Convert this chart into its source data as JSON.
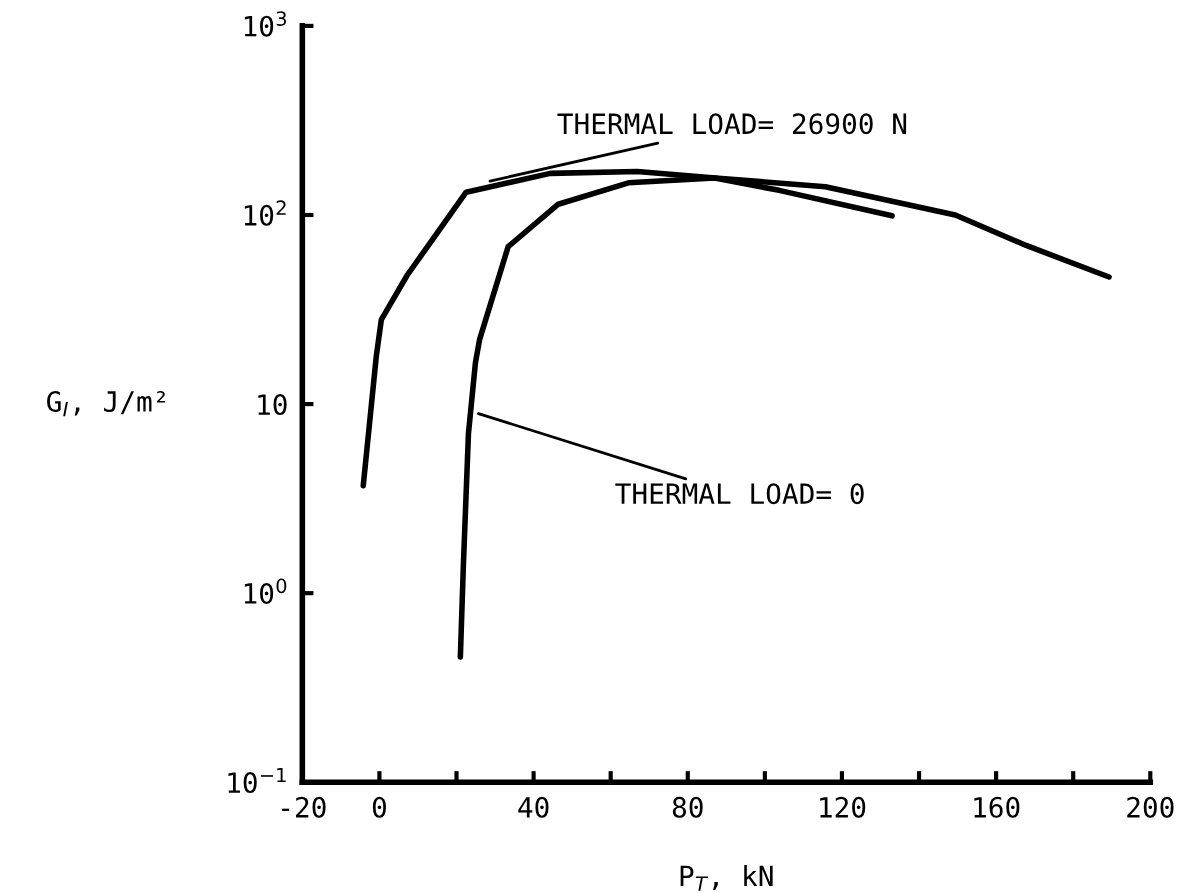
{
  "chart_data": {
    "type": "line",
    "xlabel": "P$_{T}$, kN",
    "ylabel": "G$_{I}$, J/m²",
    "log": "y",
    "grid": false,
    "legend": false,
    "marker": "none",
    "line_style": "solid",
    "xlim": [
      -20,
      200
    ],
    "xticks": [
      -20,
      0,
      {
        "value": 20,
        "label": null
      },
      40,
      {
        "value": 60,
        "label": null
      },
      80,
      {
        "value": 100,
        "label": null
      },
      120,
      {
        "value": 140,
        "label": null
      },
      160,
      {
        "value": 180,
        "label": null
      },
      200
    ],
    "ylim": [
      0.1,
      1000
    ],
    "yticks": [
      {
        "value": 0.1,
        "label": "10$^{−1}$"
      },
      {
        "value": 1,
        "label": "10$^{0}$"
      },
      {
        "value": 10,
        "label": "10"
      },
      {
        "value": 100,
        "label": "10$^{2}$"
      },
      {
        "value": 1000,
        "label": "10$^{3}$"
      }
    ],
    "series": [
      {
        "color": "#000000",
        "x": [
          -4.2,
          -0.8,
          0.5,
          7.2,
          22.5,
          44.3,
          66.9,
          87.1,
          115.7,
          149.4,
          167.8,
          189.3
        ],
        "values": [
          3.7,
          18,
          28,
          48,
          132,
          166,
          170,
          157,
          141,
          100,
          69,
          47
        ]
      },
      {
        "color": "#000000",
        "x": [
          21,
          21.8,
          23.1,
          24.9,
          26,
          33.4,
          46.4,
          64.6,
          87,
          103.7,
          133
        ],
        "values": [
          0.46,
          1.44,
          7.0,
          16.5,
          22,
          68,
          114,
          148,
          157,
          135,
          99
        ]
      }
    ],
    "annotations": [
      {
        "text": "THERMAL LOAD= 26900 N",
        "x": 28,
        "y": 150
      },
      {
        "text": "THERMAL LOAD= 0",
        "x": 25,
        "y": 9
      }
    ]
  }
}
